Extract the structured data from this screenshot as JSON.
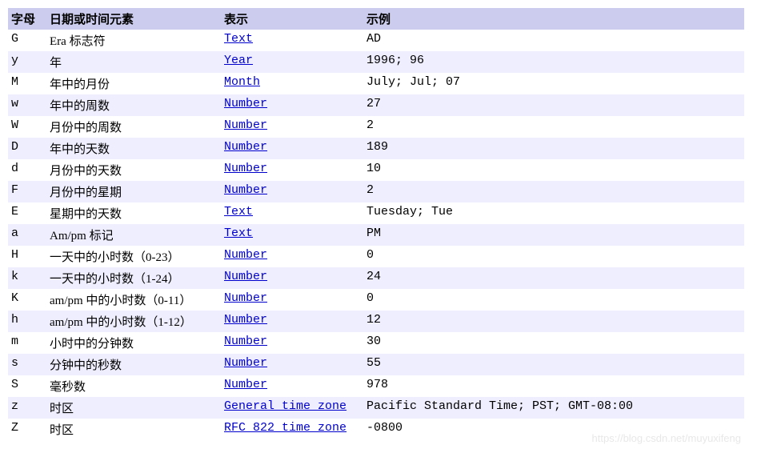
{
  "columns": [
    "字母",
    "日期或时间元素",
    "表示",
    "示例"
  ],
  "rows": [
    {
      "letter": "G",
      "desc": "Era 标志符",
      "repr": "Text",
      "example": "AD"
    },
    {
      "letter": "y",
      "desc": "年",
      "repr": "Year",
      "example": "1996; 96"
    },
    {
      "letter": "M",
      "desc": "年中的月份",
      "repr": "Month",
      "example": "July; Jul; 07"
    },
    {
      "letter": "w",
      "desc": "年中的周数",
      "repr": "Number",
      "example": "27"
    },
    {
      "letter": "W",
      "desc": "月份中的周数",
      "repr": "Number",
      "example": "2"
    },
    {
      "letter": "D",
      "desc": "年中的天数",
      "repr": "Number",
      "example": "189"
    },
    {
      "letter": "d",
      "desc": "月份中的天数",
      "repr": "Number",
      "example": "10"
    },
    {
      "letter": "F",
      "desc": "月份中的星期",
      "repr": "Number",
      "example": "2"
    },
    {
      "letter": "E",
      "desc": "星期中的天数",
      "repr": "Text",
      "example": "Tuesday; Tue"
    },
    {
      "letter": "a",
      "desc": "Am/pm 标记",
      "repr": "Text",
      "example": "PM"
    },
    {
      "letter": "H",
      "desc": "一天中的小时数（0-23）",
      "repr": "Number",
      "example": "0"
    },
    {
      "letter": "k",
      "desc": "一天中的小时数（1-24）",
      "repr": "Number",
      "example": "24"
    },
    {
      "letter": "K",
      "desc": "am/pm 中的小时数（0-11）",
      "repr": "Number",
      "example": "0"
    },
    {
      "letter": "h",
      "desc": "am/pm 中的小时数（1-12）",
      "repr": "Number",
      "example": "12"
    },
    {
      "letter": "m",
      "desc": "小时中的分钟数",
      "repr": "Number",
      "example": "30"
    },
    {
      "letter": "s",
      "desc": "分钟中的秒数",
      "repr": "Number",
      "example": "55"
    },
    {
      "letter": "S",
      "desc": "毫秒数",
      "repr": "Number",
      "example": "978"
    },
    {
      "letter": "z",
      "desc": "时区",
      "repr": "General time zone",
      "example": "Pacific Standard Time; PST; GMT-08:00"
    },
    {
      "letter": "Z",
      "desc": "时区",
      "repr": "RFC 822 time zone",
      "example": "-0800"
    }
  ],
  "watermark": "https://blog.csdn.net/muyuxifeng",
  "header_bg": "#ccccee",
  "row_even_bg": "#eeeeff",
  "link_color": "#0000cc"
}
